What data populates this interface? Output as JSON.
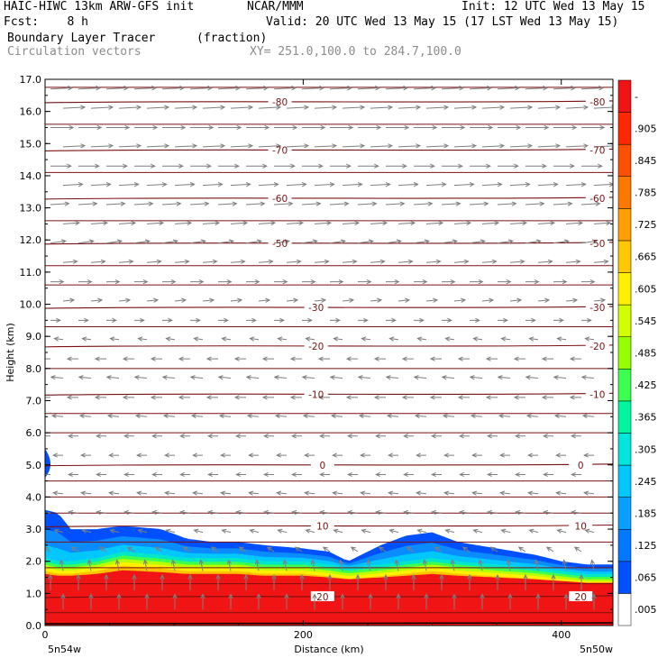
{
  "header": {
    "line1_left": "HAIC-HIWC 13km ARW-GFS init",
    "line1_mid": "NCAR/MMM",
    "line1_right": "Init: 12 UTC Wed 13 May 15",
    "line2_left": "Fcst:    8 h",
    "line2_right": "Valid: 20 UTC Wed 13 May 15 (17 LST Wed 13 May 15)",
    "field_name": "Boundary Layer Tracer",
    "field_units": "(fraction)",
    "vector_name": "Circulation vectors",
    "xy_range": "XY= 251.0,100.0 to 284.7,100.0"
  },
  "colors": {
    "background": "#ffffff",
    "contour": "#7a1010",
    "vector": "#7f7f7f",
    "gray_text": "#8c8c8c"
  },
  "chart_data": {
    "type": "heatmap",
    "title": "Boundary Layer Tracer",
    "ylabel": "Height (km)",
    "xlabel": "Distance (km)",
    "ylim": [
      0,
      17
    ],
    "xlim": [
      0,
      440
    ],
    "y_ticks": [
      "0.0",
      "1.0",
      "2.0",
      "3.0",
      "4.0",
      "5.0",
      "6.0",
      "7.0",
      "8.0",
      "9.0",
      "10.0",
      "11.0",
      "12.0",
      "13.0",
      "14.0",
      "15.0",
      "16.0",
      "17.0"
    ],
    "x_ticks": [
      "0",
      "200",
      "400"
    ],
    "x_tick_values": [
      0,
      200,
      400
    ],
    "x_endpoint_labels": [
      "5n54w",
      "5n50w"
    ],
    "colorbar": {
      "labels": [
        ".005",
        ".065",
        ".125",
        ".185",
        ".245",
        ".305",
        ".365",
        ".425",
        ".485",
        ".545",
        ".605",
        ".665",
        ".725",
        ".785",
        ".845",
        ".905",
        "-"
      ],
      "colors": [
        "#ffffff",
        "#0050ff",
        "#0078ff",
        "#0aa0ff",
        "#00c8ff",
        "#00e6dc",
        "#00f5a0",
        "#3cff50",
        "#96ff00",
        "#d2ff00",
        "#fff000",
        "#ffc800",
        "#ffa000",
        "#ff7800",
        "#ff5000",
        "#ff2800",
        "#f01414"
      ]
    },
    "bl_top_km": {
      "x": [
        0,
        10,
        20,
        40,
        60,
        90,
        110,
        130,
        150,
        170,
        200,
        220,
        235,
        260,
        280,
        300,
        320,
        350,
        380,
        400,
        420,
        440
      ],
      "values": [
        3.6,
        3.5,
        3.0,
        3.0,
        3.1,
        3.0,
        2.7,
        2.6,
        2.6,
        2.5,
        2.4,
        2.3,
        2.0,
        2.5,
        2.8,
        2.9,
        2.6,
        2.4,
        2.2,
        2.0,
        1.9,
        1.9
      ]
    },
    "bl_core_km": {
      "x": [
        0,
        10,
        20,
        40,
        60,
        90,
        110,
        130,
        150,
        170,
        200,
        220,
        235,
        260,
        280,
        300,
        320,
        350,
        380,
        400,
        420,
        440
      ],
      "values": [
        2.1,
        2.0,
        2.0,
        2.1,
        2.3,
        2.2,
        2.1,
        2.1,
        2.1,
        2.0,
        2.0,
        1.9,
        1.8,
        1.9,
        2.0,
        2.1,
        2.0,
        1.9,
        1.8,
        1.7,
        1.6,
        1.6
      ]
    },
    "temperature_contours": [
      {
        "label": "-80",
        "y_km": 16.3
      },
      {
        "label": "-70",
        "y_km": 14.8
      },
      {
        "label": "-60",
        "y_km": 13.3
      },
      {
        "label": "-50",
        "y_km": 11.9
      },
      {
        "label": "-30",
        "y_km": 9.9
      },
      {
        "label": "-20",
        "y_km": 8.7
      },
      {
        "label": "-10",
        "y_km": 7.2
      },
      {
        "label": "0",
        "y_km": 5.0
      },
      {
        "label": "10",
        "y_km": 3.1
      },
      {
        "label": "20",
        "y_km": 0.9
      }
    ],
    "extra_contours_km": [
      16.75,
      15.6,
      14.1,
      12.6,
      11.2,
      10.6,
      9.3,
      8.0,
      6.6,
      6.0,
      4.5,
      4.0,
      3.5,
      2.6,
      1.8,
      1.3,
      0.4
    ],
    "vectors": {
      "rows_km": [
        16.7,
        16.1,
        15.5,
        14.9,
        14.3,
        13.7,
        13.1,
        12.5,
        11.9,
        11.3,
        10.7,
        10.1,
        9.5,
        8.9,
        8.3,
        7.7,
        7.1,
        6.5,
        5.9,
        5.3,
        4.7,
        4.1,
        3.5,
        2.9,
        2.3,
        1.7,
        1.1,
        0.5
      ],
      "u_rel": [
        1.0,
        1.0,
        1.05,
        1.0,
        0.95,
        0.9,
        0.85,
        0.75,
        0.7,
        0.65,
        0.6,
        0.5,
        0.45,
        -0.4,
        -0.5,
        -0.55,
        -0.5,
        -0.5,
        -0.45,
        -0.45,
        -0.45,
        -0.45,
        -0.45,
        -0.4,
        -0.3,
        -0.1,
        0.0,
        0.0
      ],
      "w_rel": [
        0.05,
        0.05,
        0.0,
        0.05,
        0.0,
        0.05,
        0.05,
        0.05,
        0.1,
        0.05,
        0.0,
        0.05,
        0.0,
        0.05,
        0.0,
        0.05,
        0.0,
        0.05,
        0.0,
        0.0,
        0.0,
        0.05,
        0.05,
        0.1,
        0.2,
        0.5,
        0.7,
        0.7
      ]
    }
  }
}
